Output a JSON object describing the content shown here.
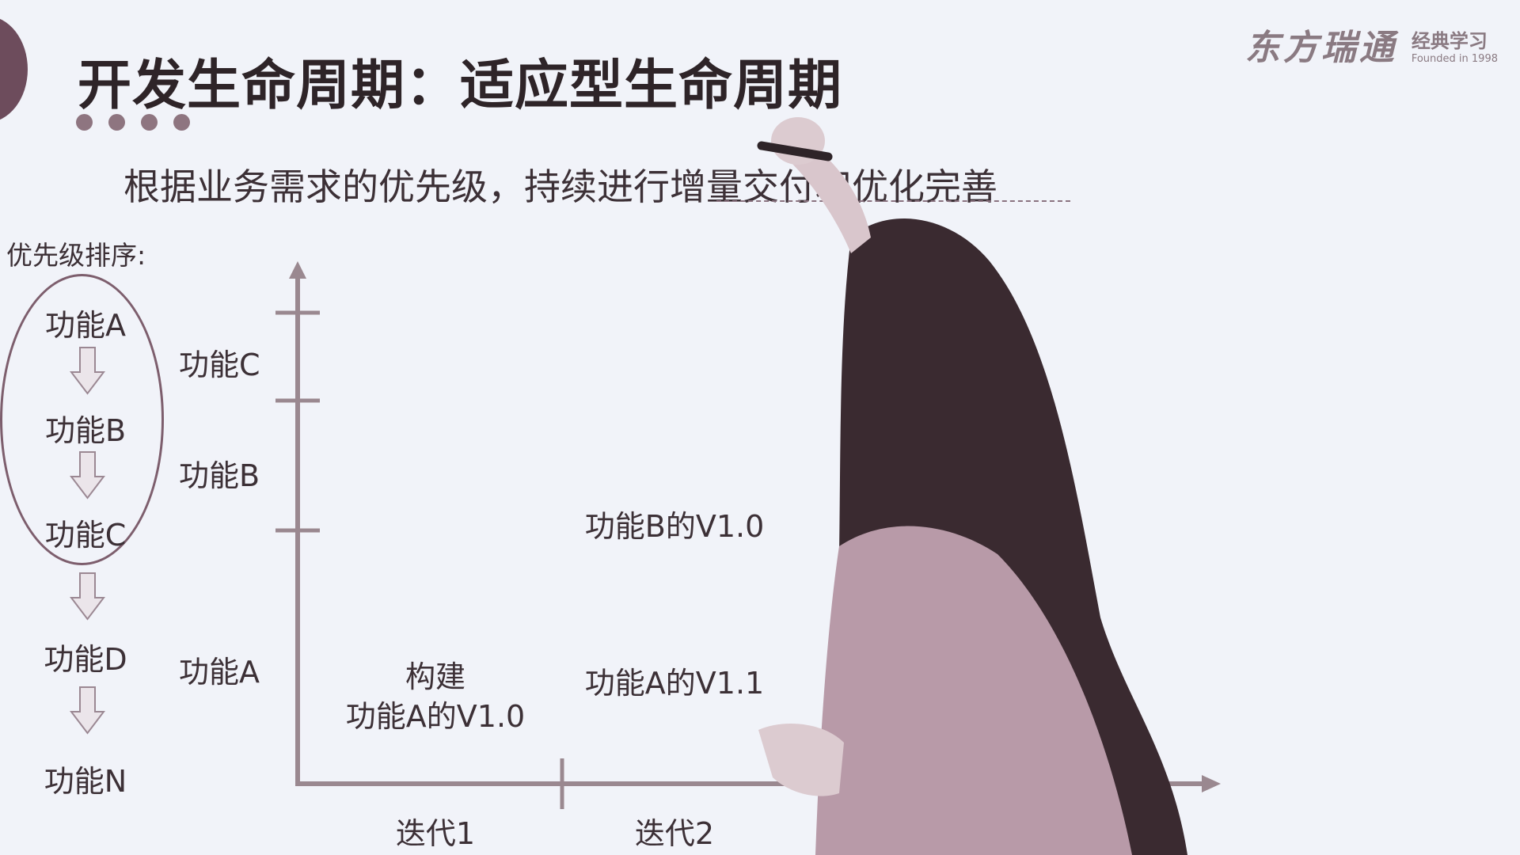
{
  "header": {
    "title": "开发生命周期：适应型生命周期",
    "brand_name": "东方瑞通",
    "brand_sub": "经典学习",
    "brand_founded": "Founded in 1998"
  },
  "subtitle": "根据业务需求的优先级，持续进行增量交付和优化完善",
  "priority": {
    "label": "优先级排序:",
    "items": [
      "功能A",
      "功能B",
      "功能C",
      "功能D",
      "功能N"
    ]
  },
  "y_axis_labels": [
    "功能C",
    "功能B",
    "功能A"
  ],
  "iterations": {
    "iter1": [
      "构建",
      "功能A的V1.0"
    ],
    "iter2_top": "功能B的V1.0",
    "iter2_bottom": "功能A的V1.1"
  },
  "x_axis_labels": [
    "迭代1",
    "迭代2"
  ],
  "colors": {
    "background": "#f1f3f9",
    "accent": "#7d5e6d",
    "text": "#3c3036",
    "axis": "#9a8890"
  }
}
